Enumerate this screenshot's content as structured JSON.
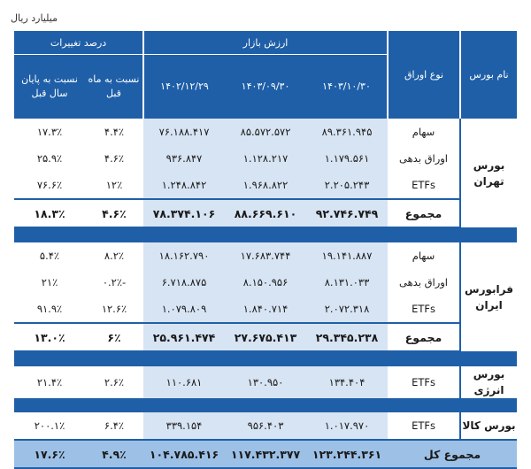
{
  "unit_label": "میلیارد ریال",
  "header": {
    "bourse": "نام بورس",
    "type": "نوع اوراق",
    "market_value": "ارزش بازار",
    "change": "درصد تغییرات",
    "date1": "۱۴۰۳/۱۰/۳۰",
    "date2": "۱۴۰۳/۰۹/۳۰",
    "date3": "۱۴۰۲/۱۲/۲۹",
    "vs_prev_month": "نسبت به ماه قبل",
    "vs_prev_year_end": "نسبت به پایان سال قبل"
  },
  "tehran": {
    "name": "بورس تهران",
    "rows": [
      {
        "type": "سهام",
        "v1": "۸۹.۳۶۱.۹۴۵",
        "v2": "۸۵.۵۷۲.۵۷۲",
        "v3": "۷۶.۱۸۸.۴۱۷",
        "m": "۴.۴٪",
        "y": "۱۷.۳٪"
      },
      {
        "type": "اوراق بدهی",
        "v1": "۱.۱۷۹.۵۶۱",
        "v2": "۱.۱۲۸.۲۱۷",
        "v3": "۹۳۶.۸۴۷",
        "m": "۴.۶٪",
        "y": "۲۵.۹٪"
      },
      {
        "type": "ETFs",
        "v1": "۲.۲۰۵.۲۴۳",
        "v2": "۱.۹۶۸.۸۲۲",
        "v3": "۱.۲۴۸.۸۴۲",
        "m": "۱۲٪",
        "y": "۷۶.۶٪"
      }
    ],
    "total": {
      "type": "مجموع",
      "v1": "۹۲.۷۴۶.۷۴۹",
      "v2": "۸۸.۶۶۹.۶۱۰",
      "v3": "۷۸.۳۷۴.۱۰۶",
      "m": "۴.۶٪",
      "y": "۱۸.۳٪"
    }
  },
  "farabourse": {
    "name": "فرابورس ایران",
    "rows": [
      {
        "type": "سهام",
        "v1": "۱۹.۱۴۱.۸۸۷",
        "v2": "۱۷.۶۸۳.۷۴۴",
        "v3": "۱۸.۱۶۲.۷۹۰",
        "m": "۸.۲٪",
        "y": "۵.۴٪"
      },
      {
        "type": "اوراق بدهی",
        "v1": "۸.۱۳۱.۰۳۳",
        "v2": "۸.۱۵۰.۹۵۶",
        "v3": "۶.۷۱۸.۸۷۵",
        "m": "-۰.۲٪",
        "y": "۲۱٪"
      },
      {
        "type": "ETFs",
        "v1": "۲.۰۷۲.۳۱۸",
        "v2": "۱.۸۴۰.۷۱۴",
        "v3": "۱.۰۷۹.۸۰۹",
        "m": "۱۲.۶٪",
        "y": "۹۱.۹٪"
      }
    ],
    "total": {
      "type": "مجموع",
      "v1": "۲۹.۳۴۵.۲۳۸",
      "v2": "۲۷.۶۷۵.۴۱۳",
      "v3": "۲۵.۹۶۱.۴۷۴",
      "m": "۶٪",
      "y": "۱۳.۰٪"
    }
  },
  "energy": {
    "name": "بورس انرژی",
    "row": {
      "type": "ETFs",
      "v1": "۱۳۴.۴۰۴",
      "v2": "۱۳۰.۹۵۰",
      "v3": "۱۱۰.۶۸۱",
      "m": "۲.۶٪",
      "y": "۲۱.۴٪"
    }
  },
  "commodity": {
    "name": "بورس کالا",
    "row": {
      "type": "ETFs",
      "v1": "۱.۰۱۷.۹۷۰",
      "v2": "۹۵۶.۴۰۳",
      "v3": "۳۳۹.۱۵۴",
      "m": "۶.۴٪",
      "y": "۲۰۰.۱٪"
    }
  },
  "grand_total": {
    "label": "مجموع کل",
    "v1": "۱۲۳.۲۴۴.۳۶۱",
    "v2": "۱۱۷.۴۳۲.۳۷۷",
    "v3": "۱۰۴.۷۸۵.۴۱۶",
    "m": "۴.۹٪",
    "y": "۱۷.۶٪"
  }
}
